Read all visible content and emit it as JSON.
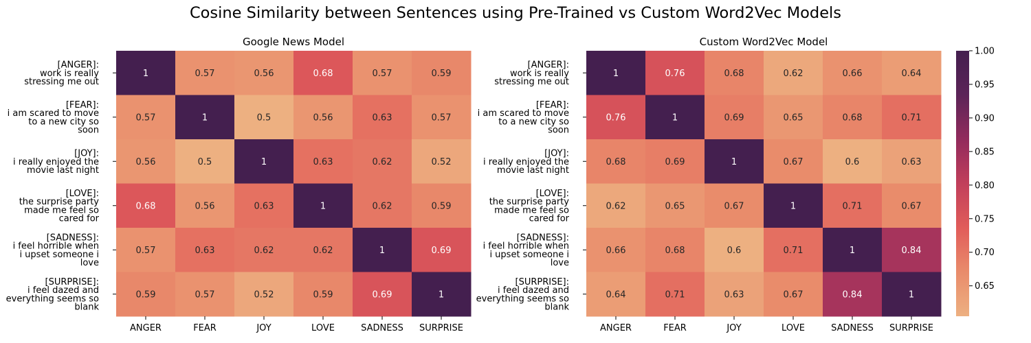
{
  "figure_title": "Cosine Similarity between Sentences using Pre-Trained vs Custom Word2Vec Models",
  "colorbar": {
    "min": 0.6047,
    "max": 1.0,
    "ticks": [
      "1.00",
      "0.95",
      "0.90",
      "0.85",
      "0.80",
      "0.75",
      "0.70",
      "0.65"
    ],
    "tick_values": [
      1.0,
      0.95,
      0.9,
      0.85,
      0.8,
      0.75,
      0.7,
      0.65
    ],
    "colormap_stops": [
      "#edb081",
      "#e98c6b",
      "#e15c5a",
      "#c13f5b",
      "#922b5c",
      "#5c2458",
      "#441f4f"
    ]
  },
  "chart_data": [
    {
      "type": "heatmap",
      "title": "Google News Model",
      "x_labels": [
        "ANGER",
        "FEAR",
        "JOY",
        "LOVE",
        "SADNESS",
        "SURPRISE"
      ],
      "y_labels": [
        [
          "[ANGER]:",
          "work is really",
          "stressing me out"
        ],
        [
          "[FEAR]:",
          "i am scared to move",
          "to a new city so",
          "soon"
        ],
        [
          "[JOY]:",
          "i really enjoyed the",
          "movie last night"
        ],
        [
          "[LOVE]:",
          "the surprise party",
          "made me feel so",
          "cared for"
        ],
        [
          "[SADNESS]:",
          "i feel horrible when",
          "i upset someone i",
          "love"
        ],
        [
          "[SURPRISE]:",
          "i feel dazed and",
          "everything seems so",
          "blank"
        ]
      ],
      "values": [
        [
          1,
          0.57,
          0.56,
          0.68,
          0.57,
          0.59
        ],
        [
          0.57,
          1,
          0.5,
          0.56,
          0.63,
          0.57
        ],
        [
          0.56,
          0.5,
          1,
          0.63,
          0.62,
          0.52
        ],
        [
          0.68,
          0.56,
          0.63,
          1,
          0.62,
          0.59
        ],
        [
          0.57,
          0.63,
          0.62,
          0.62,
          1,
          0.69
        ],
        [
          0.59,
          0.57,
          0.52,
          0.59,
          0.69,
          1
        ]
      ],
      "color_range": [
        0.5,
        1.0
      ]
    },
    {
      "type": "heatmap",
      "title": "Custom Word2Vec Model",
      "x_labels": [
        "ANGER",
        "FEAR",
        "JOY",
        "LOVE",
        "SADNESS",
        "SURPRISE"
      ],
      "y_labels": [
        [
          "[ANGER]:",
          "work is really",
          "stressing me out"
        ],
        [
          "[FEAR]:",
          "i am scared to move",
          "to a new city so",
          "soon"
        ],
        [
          "[JOY]:",
          "i really enjoyed the",
          "movie last night"
        ],
        [
          "[LOVE]:",
          "the surprise party",
          "made me feel so",
          "cared for"
        ],
        [
          "[SADNESS]:",
          "i feel horrible when",
          "i upset someone i",
          "love"
        ],
        [
          "[SURPRISE]:",
          "i feel dazed and",
          "everything seems so",
          "blank"
        ]
      ],
      "values": [
        [
          1,
          0.76,
          0.68,
          0.62,
          0.66,
          0.64
        ],
        [
          0.76,
          1,
          0.69,
          0.65,
          0.68,
          0.71
        ],
        [
          0.68,
          0.69,
          1,
          0.67,
          0.6,
          0.63
        ],
        [
          0.62,
          0.65,
          0.67,
          1,
          0.71,
          0.67
        ],
        [
          0.66,
          0.68,
          0.6,
          0.71,
          1,
          0.84
        ],
        [
          0.64,
          0.71,
          0.63,
          0.67,
          0.84,
          1
        ]
      ],
      "color_range": [
        0.6047,
        1.0
      ]
    }
  ]
}
